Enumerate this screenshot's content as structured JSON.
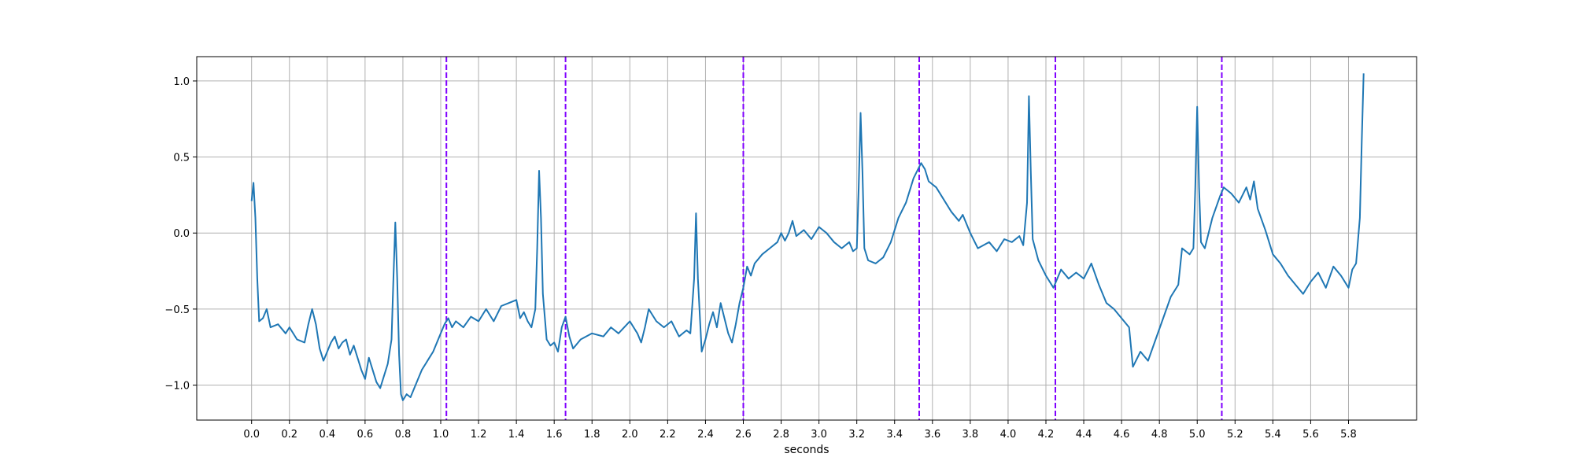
{
  "chart_data": {
    "type": "line",
    "xlabel": "seconds",
    "ylabel": "",
    "xlim": [
      -0.29,
      6.16
    ],
    "ylim": [
      -1.23,
      1.16
    ],
    "grid": true,
    "x_ticks": [
      0.0,
      0.2,
      0.4,
      0.6,
      0.8,
      1.0,
      1.2,
      1.4,
      1.6,
      1.8,
      2.0,
      2.2,
      2.4,
      2.6,
      2.8,
      3.0,
      3.2,
      3.4,
      3.6,
      3.8,
      4.0,
      4.2,
      4.4,
      4.6,
      4.8,
      5.0,
      5.2,
      5.4,
      5.6,
      5.8
    ],
    "x_tick_labels": [
      "0.0",
      "0.2",
      "0.4",
      "0.6",
      "0.8",
      "1.0",
      "1.2",
      "1.4",
      "1.6",
      "1.8",
      "2.0",
      "2.2",
      "2.4",
      "2.6",
      "2.8",
      "3.0",
      "3.2",
      "3.4",
      "3.6",
      "3.8",
      "4.0",
      "4.2",
      "4.4",
      "4.6",
      "4.8",
      "5.0",
      "5.2",
      "5.4",
      "5.6",
      "5.8"
    ],
    "y_ticks": [
      -1.0,
      -0.5,
      0.0,
      0.5,
      1.0
    ],
    "y_tick_labels": [
      "−1.0",
      "−0.5",
      "0.0",
      "0.5",
      "1.0"
    ],
    "series": [
      {
        "color": "#1f77b4",
        "points": [
          [
            0.0,
            0.21
          ],
          [
            0.01,
            0.33
          ],
          [
            0.02,
            0.1
          ],
          [
            0.03,
            -0.3
          ],
          [
            0.04,
            -0.58
          ],
          [
            0.06,
            -0.56
          ],
          [
            0.08,
            -0.5
          ],
          [
            0.1,
            -0.62
          ],
          [
            0.14,
            -0.6
          ],
          [
            0.18,
            -0.66
          ],
          [
            0.2,
            -0.62
          ],
          [
            0.24,
            -0.7
          ],
          [
            0.28,
            -0.72
          ],
          [
            0.3,
            -0.6
          ],
          [
            0.32,
            -0.5
          ],
          [
            0.34,
            -0.6
          ],
          [
            0.36,
            -0.76
          ],
          [
            0.38,
            -0.84
          ],
          [
            0.4,
            -0.78
          ],
          [
            0.42,
            -0.72
          ],
          [
            0.44,
            -0.68
          ],
          [
            0.46,
            -0.76
          ],
          [
            0.48,
            -0.72
          ],
          [
            0.5,
            -0.7
          ],
          [
            0.52,
            -0.8
          ],
          [
            0.54,
            -0.74
          ],
          [
            0.56,
            -0.82
          ],
          [
            0.58,
            -0.9
          ],
          [
            0.6,
            -0.96
          ],
          [
            0.62,
            -0.82
          ],
          [
            0.64,
            -0.9
          ],
          [
            0.66,
            -0.98
          ],
          [
            0.68,
            -1.02
          ],
          [
            0.7,
            -0.94
          ],
          [
            0.72,
            -0.86
          ],
          [
            0.74,
            -0.7
          ],
          [
            0.75,
            -0.3
          ],
          [
            0.76,
            0.07
          ],
          [
            0.77,
            -0.3
          ],
          [
            0.78,
            -0.8
          ],
          [
            0.79,
            -1.06
          ],
          [
            0.8,
            -1.1
          ],
          [
            0.82,
            -1.06
          ],
          [
            0.84,
            -1.08
          ],
          [
            0.86,
            -1.02
          ],
          [
            0.88,
            -0.96
          ],
          [
            0.9,
            -0.9
          ],
          [
            0.92,
            -0.86
          ],
          [
            0.94,
            -0.82
          ],
          [
            0.96,
            -0.78
          ],
          [
            0.98,
            -0.72
          ],
          [
            1.0,
            -0.66
          ],
          [
            1.02,
            -0.6
          ],
          [
            1.04,
            -0.56
          ],
          [
            1.06,
            -0.62
          ],
          [
            1.08,
            -0.58
          ],
          [
            1.12,
            -0.62
          ],
          [
            1.16,
            -0.55
          ],
          [
            1.2,
            -0.58
          ],
          [
            1.24,
            -0.5
          ],
          [
            1.28,
            -0.58
          ],
          [
            1.32,
            -0.48
          ],
          [
            1.36,
            -0.46
          ],
          [
            1.4,
            -0.44
          ],
          [
            1.42,
            -0.56
          ],
          [
            1.44,
            -0.52
          ],
          [
            1.46,
            -0.58
          ],
          [
            1.48,
            -0.62
          ],
          [
            1.5,
            -0.5
          ],
          [
            1.51,
            -0.1
          ],
          [
            1.52,
            0.41
          ],
          [
            1.53,
            0.1
          ],
          [
            1.54,
            -0.4
          ],
          [
            1.56,
            -0.7
          ],
          [
            1.58,
            -0.74
          ],
          [
            1.6,
            -0.72
          ],
          [
            1.62,
            -0.78
          ],
          [
            1.64,
            -0.62
          ],
          [
            1.66,
            -0.55
          ],
          [
            1.68,
            -0.68
          ],
          [
            1.7,
            -0.76
          ],
          [
            1.74,
            -0.7
          ],
          [
            1.8,
            -0.66
          ],
          [
            1.86,
            -0.68
          ],
          [
            1.9,
            -0.62
          ],
          [
            1.94,
            -0.66
          ],
          [
            2.0,
            -0.58
          ],
          [
            2.04,
            -0.66
          ],
          [
            2.06,
            -0.72
          ],
          [
            2.08,
            -0.62
          ],
          [
            2.1,
            -0.5
          ],
          [
            2.14,
            -0.58
          ],
          [
            2.18,
            -0.62
          ],
          [
            2.22,
            -0.58
          ],
          [
            2.26,
            -0.68
          ],
          [
            2.3,
            -0.64
          ],
          [
            2.32,
            -0.66
          ],
          [
            2.34,
            -0.3
          ],
          [
            2.35,
            0.13
          ],
          [
            2.36,
            -0.3
          ],
          [
            2.38,
            -0.78
          ],
          [
            2.4,
            -0.7
          ],
          [
            2.42,
            -0.6
          ],
          [
            2.44,
            -0.52
          ],
          [
            2.46,
            -0.62
          ],
          [
            2.48,
            -0.46
          ],
          [
            2.5,
            -0.56
          ],
          [
            2.52,
            -0.66
          ],
          [
            2.54,
            -0.72
          ],
          [
            2.56,
            -0.6
          ],
          [
            2.58,
            -0.46
          ],
          [
            2.6,
            -0.36
          ],
          [
            2.62,
            -0.22
          ],
          [
            2.64,
            -0.28
          ],
          [
            2.66,
            -0.2
          ],
          [
            2.7,
            -0.14
          ],
          [
            2.74,
            -0.1
          ],
          [
            2.78,
            -0.06
          ],
          [
            2.8,
            0.0
          ],
          [
            2.82,
            -0.05
          ],
          [
            2.84,
            0.0
          ],
          [
            2.86,
            0.08
          ],
          [
            2.88,
            -0.02
          ],
          [
            2.92,
            0.02
          ],
          [
            2.96,
            -0.04
          ],
          [
            3.0,
            0.04
          ],
          [
            3.04,
            0.0
          ],
          [
            3.08,
            -0.06
          ],
          [
            3.12,
            -0.1
          ],
          [
            3.16,
            -0.06
          ],
          [
            3.18,
            -0.12
          ],
          [
            3.2,
            -0.1
          ],
          [
            3.21,
            0.3
          ],
          [
            3.22,
            0.79
          ],
          [
            3.23,
            0.4
          ],
          [
            3.24,
            -0.1
          ],
          [
            3.26,
            -0.18
          ],
          [
            3.3,
            -0.2
          ],
          [
            3.34,
            -0.16
          ],
          [
            3.38,
            -0.06
          ],
          [
            3.42,
            0.1
          ],
          [
            3.46,
            0.2
          ],
          [
            3.5,
            0.36
          ],
          [
            3.54,
            0.46
          ],
          [
            3.56,
            0.42
          ],
          [
            3.58,
            0.34
          ],
          [
            3.62,
            0.3
          ],
          [
            3.66,
            0.22
          ],
          [
            3.7,
            0.14
          ],
          [
            3.74,
            0.08
          ],
          [
            3.76,
            0.12
          ],
          [
            3.8,
            0.0
          ],
          [
            3.84,
            -0.1
          ],
          [
            3.9,
            -0.06
          ],
          [
            3.94,
            -0.12
          ],
          [
            3.98,
            -0.04
          ],
          [
            4.02,
            -0.06
          ],
          [
            4.06,
            -0.02
          ],
          [
            4.08,
            -0.08
          ],
          [
            4.1,
            0.2
          ],
          [
            4.11,
            0.9
          ],
          [
            4.12,
            0.4
          ],
          [
            4.13,
            -0.04
          ],
          [
            4.16,
            -0.18
          ],
          [
            4.2,
            -0.28
          ],
          [
            4.24,
            -0.36
          ],
          [
            4.28,
            -0.24
          ],
          [
            4.32,
            -0.3
          ],
          [
            4.36,
            -0.26
          ],
          [
            4.4,
            -0.3
          ],
          [
            4.44,
            -0.2
          ],
          [
            4.48,
            -0.34
          ],
          [
            4.52,
            -0.46
          ],
          [
            4.56,
            -0.5
          ],
          [
            4.6,
            -0.56
          ],
          [
            4.64,
            -0.62
          ],
          [
            4.66,
            -0.88
          ],
          [
            4.7,
            -0.78
          ],
          [
            4.74,
            -0.84
          ],
          [
            4.78,
            -0.7
          ],
          [
            4.82,
            -0.56
          ],
          [
            4.86,
            -0.42
          ],
          [
            4.9,
            -0.34
          ],
          [
            4.92,
            -0.1
          ],
          [
            4.96,
            -0.14
          ],
          [
            4.98,
            -0.1
          ],
          [
            4.99,
            0.3
          ],
          [
            5.0,
            0.83
          ],
          [
            5.01,
            0.3
          ],
          [
            5.02,
            -0.06
          ],
          [
            5.04,
            -0.1
          ],
          [
            5.08,
            0.1
          ],
          [
            5.12,
            0.24
          ],
          [
            5.14,
            0.3
          ],
          [
            5.18,
            0.26
          ],
          [
            5.22,
            0.2
          ],
          [
            5.26,
            0.3
          ],
          [
            5.28,
            0.22
          ],
          [
            5.3,
            0.34
          ],
          [
            5.32,
            0.16
          ],
          [
            5.36,
            0.02
          ],
          [
            5.4,
            -0.14
          ],
          [
            5.44,
            -0.2
          ],
          [
            5.48,
            -0.28
          ],
          [
            5.52,
            -0.34
          ],
          [
            5.56,
            -0.4
          ],
          [
            5.6,
            -0.32
          ],
          [
            5.64,
            -0.26
          ],
          [
            5.68,
            -0.36
          ],
          [
            5.72,
            -0.22
          ],
          [
            5.76,
            -0.28
          ],
          [
            5.8,
            -0.36
          ],
          [
            5.82,
            -0.24
          ],
          [
            5.84,
            -0.2
          ],
          [
            5.86,
            0.1
          ],
          [
            5.87,
            0.6
          ],
          [
            5.88,
            1.05
          ]
        ]
      }
    ],
    "vlines": {
      "color": "#8000ff",
      "style": "dashed",
      "x": [
        1.03,
        1.66,
        2.6,
        3.53,
        4.25,
        5.13
      ]
    }
  }
}
